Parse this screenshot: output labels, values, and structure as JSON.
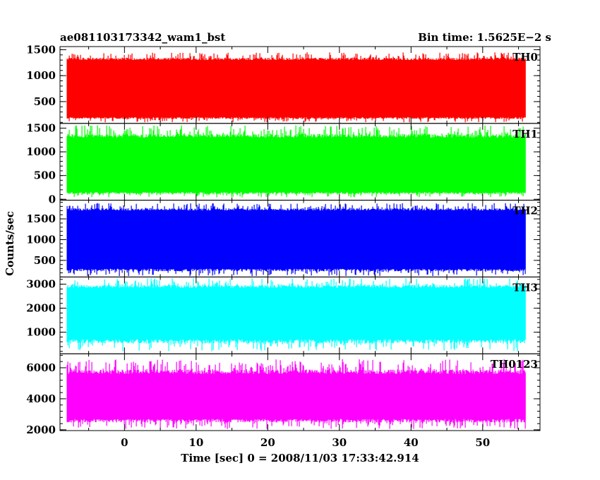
{
  "header": {
    "title": "ae081103173342_wam1_bst",
    "bin_time": "Bin time: 1.5625E−2 s"
  },
  "chart_data": {
    "type": "line",
    "xlabel": "Time [sec] 0 = 2008/11/03 17:33:42.914",
    "ylabel": "Counts/sec",
    "xlim": [
      -9,
      58
    ],
    "x_ticks": [
      0,
      10,
      20,
      30,
      40,
      50
    ],
    "x_data_range": [
      -8,
      56
    ],
    "panels": [
      {
        "name": "TH0",
        "color": "#ff0000",
        "ylim": [
          80,
          1560
        ],
        "y_ticks": [
          500,
          1000,
          1500
        ],
        "band": [
          100,
          1450
        ],
        "typical": [
          200,
          1300
        ],
        "mean": 720
      },
      {
        "name": "TH1",
        "color": "#00ff00",
        "ylim": [
          -20,
          1600
        ],
        "y_ticks": [
          0,
          500,
          1000,
          1500
        ],
        "band": [
          40,
          1560
        ],
        "typical": [
          150,
          1300
        ],
        "mean": 620
      },
      {
        "name": "TH2",
        "color": "#0000ff",
        "ylim": [
          100,
          1950
        ],
        "y_ticks": [
          500,
          1000,
          1500
        ],
        "band": [
          120,
          1880
        ],
        "typical": [
          300,
          1700
        ],
        "mean": 900
      },
      {
        "name": "TH3",
        "color": "#00ffff",
        "ylim": [
          100,
          3300
        ],
        "y_ticks": [
          1000,
          2000,
          3000
        ],
        "band": [
          200,
          3250
        ],
        "typical": [
          700,
          2850
        ],
        "mean": 1800
      },
      {
        "name": "TH0123",
        "color": "#ff00ff",
        "ylim": [
          1950,
          6900
        ],
        "y_ticks": [
          2000,
          4000,
          6000
        ],
        "band": [
          2050,
          6550
        ],
        "typical": [
          2700,
          5600
        ],
        "mean": 3800
      }
    ]
  }
}
